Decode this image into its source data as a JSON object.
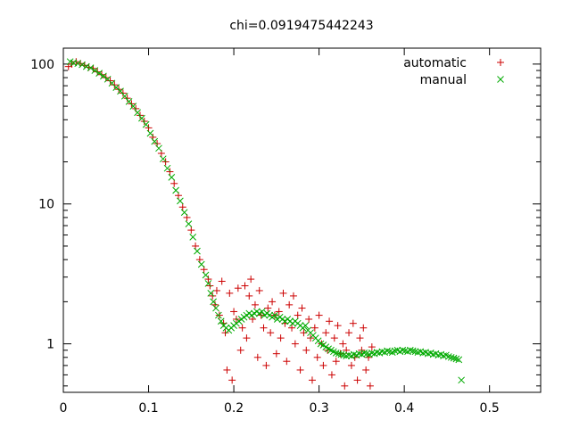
{
  "chart_data": {
    "type": "scatter",
    "title": "chi=0.0919475442243",
    "xlabel": "",
    "ylabel": "",
    "xlim": [
      0,
      0.56
    ],
    "ylim": [
      0.45,
      130
    ],
    "y_scale": "log",
    "grid": false,
    "legend_position": "top-right",
    "x_ticks": [
      "0",
      "0.1",
      "0.2",
      "0.3",
      "0.4",
      "0.5"
    ],
    "y_ticks": [
      "1",
      "10",
      "100"
    ],
    "series": [
      {
        "name": "automatic",
        "marker": "plus",
        "color": "#cc0000",
        "points": [
          [
            0.006,
            96
          ],
          [
            0.01,
            100
          ],
          [
            0.015,
            104
          ],
          [
            0.02,
            101
          ],
          [
            0.025,
            98
          ],
          [
            0.03,
            95
          ],
          [
            0.035,
            93
          ],
          [
            0.04,
            88
          ],
          [
            0.045,
            84
          ],
          [
            0.05,
            80
          ],
          [
            0.055,
            76
          ],
          [
            0.06,
            71
          ],
          [
            0.065,
            66
          ],
          [
            0.07,
            62
          ],
          [
            0.075,
            57
          ],
          [
            0.08,
            52
          ],
          [
            0.085,
            48
          ],
          [
            0.09,
            43
          ],
          [
            0.095,
            39
          ],
          [
            0.1,
            35
          ],
          [
            0.105,
            30
          ],
          [
            0.11,
            27
          ],
          [
            0.115,
            23
          ],
          [
            0.12,
            20
          ],
          [
            0.125,
            17
          ],
          [
            0.13,
            14
          ],
          [
            0.135,
            11.5
          ],
          [
            0.14,
            9.5
          ],
          [
            0.145,
            8
          ],
          [
            0.15,
            6.5
          ],
          [
            0.155,
            5
          ],
          [
            0.16,
            4
          ],
          [
            0.165,
            3.4
          ],
          [
            0.17,
            2.9
          ],
          [
            0.172,
            2.6
          ],
          [
            0.175,
            2.2
          ],
          [
            0.178,
            1.9
          ],
          [
            0.18,
            2.4
          ],
          [
            0.183,
            1.6
          ],
          [
            0.186,
            2.8
          ],
          [
            0.188,
            1.4
          ],
          [
            0.19,
            1.2
          ],
          [
            0.192,
            0.65
          ],
          [
            0.195,
            2.3
          ],
          [
            0.198,
            0.55
          ],
          [
            0.2,
            1.7
          ],
          [
            0.203,
            1.5
          ],
          [
            0.205,
            2.5
          ],
          [
            0.208,
            0.9
          ],
          [
            0.21,
            1.3
          ],
          [
            0.213,
            2.6
          ],
          [
            0.215,
            1.1
          ],
          [
            0.218,
            2.2
          ],
          [
            0.22,
            2.9
          ],
          [
            0.222,
            1.5
          ],
          [
            0.225,
            1.9
          ],
          [
            0.228,
            0.8
          ],
          [
            0.23,
            2.4
          ],
          [
            0.232,
            1.6
          ],
          [
            0.235,
            1.3
          ],
          [
            0.238,
            0.7
          ],
          [
            0.24,
            1.8
          ],
          [
            0.243,
            1.2
          ],
          [
            0.245,
            2.0
          ],
          [
            0.248,
            1.6
          ],
          [
            0.25,
            0.85
          ],
          [
            0.253,
            1.7
          ],
          [
            0.255,
            1.1
          ],
          [
            0.258,
            2.3
          ],
          [
            0.26,
            1.4
          ],
          [
            0.262,
            0.75
          ],
          [
            0.265,
            1.9
          ],
          [
            0.268,
            1.3
          ],
          [
            0.27,
            2.2
          ],
          [
            0.272,
            1.0
          ],
          [
            0.275,
            1.6
          ],
          [
            0.278,
            0.65
          ],
          [
            0.28,
            1.8
          ],
          [
            0.282,
            1.2
          ],
          [
            0.285,
            0.9
          ],
          [
            0.288,
            1.5
          ],
          [
            0.29,
            1.1
          ],
          [
            0.292,
            0.55
          ],
          [
            0.295,
            1.3
          ],
          [
            0.298,
            0.8
          ],
          [
            0.3,
            1.6
          ],
          [
            0.303,
            1.0
          ],
          [
            0.305,
            0.7
          ],
          [
            0.308,
            1.2
          ],
          [
            0.31,
            0.9
          ],
          [
            0.312,
            1.45
          ],
          [
            0.315,
            0.6
          ],
          [
            0.318,
            1.1
          ],
          [
            0.32,
            0.75
          ],
          [
            0.322,
            1.35
          ],
          [
            0.325,
            0.85
          ],
          [
            0.328,
            1.0
          ],
          [
            0.33,
            0.5
          ],
          [
            0.332,
            0.9
          ],
          [
            0.335,
            1.2
          ],
          [
            0.338,
            0.7
          ],
          [
            0.34,
            1.4
          ],
          [
            0.342,
            0.8
          ],
          [
            0.345,
            0.55
          ],
          [
            0.348,
            1.1
          ],
          [
            0.35,
            0.9
          ],
          [
            0.352,
            1.3
          ],
          [
            0.355,
            0.65
          ],
          [
            0.358,
            0.8
          ],
          [
            0.36,
            0.5
          ],
          [
            0.362,
            0.95
          ]
        ]
      },
      {
        "name": "manual",
        "marker": "cross",
        "color": "#00aa00",
        "points": [
          [
            0.008,
            104
          ],
          [
            0.012,
            102
          ],
          [
            0.017,
            101
          ],
          [
            0.022,
            99
          ],
          [
            0.027,
            96
          ],
          [
            0.032,
            94
          ],
          [
            0.037,
            90
          ],
          [
            0.042,
            86
          ],
          [
            0.047,
            82
          ],
          [
            0.052,
            78
          ],
          [
            0.057,
            73
          ],
          [
            0.062,
            68
          ],
          [
            0.067,
            64
          ],
          [
            0.072,
            59
          ],
          [
            0.077,
            54
          ],
          [
            0.082,
            50
          ],
          [
            0.087,
            45
          ],
          [
            0.092,
            41
          ],
          [
            0.097,
            37
          ],
          [
            0.102,
            32
          ],
          [
            0.107,
            28
          ],
          [
            0.112,
            25
          ],
          [
            0.117,
            21
          ],
          [
            0.122,
            18
          ],
          [
            0.127,
            15.5
          ],
          [
            0.132,
            12.5
          ],
          [
            0.137,
            10.5
          ],
          [
            0.142,
            8.7
          ],
          [
            0.147,
            7.2
          ],
          [
            0.152,
            5.8
          ],
          [
            0.157,
            4.6
          ],
          [
            0.162,
            3.7
          ],
          [
            0.167,
            3.1
          ],
          [
            0.17,
            2.7
          ],
          [
            0.173,
            2.3
          ],
          [
            0.176,
            2.0
          ],
          [
            0.179,
            1.8
          ],
          [
            0.182,
            1.6
          ],
          [
            0.185,
            1.45
          ],
          [
            0.188,
            1.35
          ],
          [
            0.191,
            1.3
          ],
          [
            0.194,
            1.25
          ],
          [
            0.197,
            1.3
          ],
          [
            0.2,
            1.35
          ],
          [
            0.203,
            1.4
          ],
          [
            0.206,
            1.45
          ],
          [
            0.209,
            1.5
          ],
          [
            0.212,
            1.55
          ],
          [
            0.215,
            1.6
          ],
          [
            0.218,
            1.65
          ],
          [
            0.221,
            1.6
          ],
          [
            0.224,
            1.65
          ],
          [
            0.227,
            1.7
          ],
          [
            0.23,
            1.65
          ],
          [
            0.233,
            1.7
          ],
          [
            0.236,
            1.6
          ],
          [
            0.239,
            1.65
          ],
          [
            0.242,
            1.6
          ],
          [
            0.245,
            1.55
          ],
          [
            0.248,
            1.6
          ],
          [
            0.251,
            1.5
          ],
          [
            0.254,
            1.55
          ],
          [
            0.257,
            1.5
          ],
          [
            0.26,
            1.45
          ],
          [
            0.263,
            1.5
          ],
          [
            0.266,
            1.45
          ],
          [
            0.269,
            1.4
          ],
          [
            0.272,
            1.45
          ],
          [
            0.275,
            1.4
          ],
          [
            0.278,
            1.35
          ],
          [
            0.281,
            1.3
          ],
          [
            0.284,
            1.35
          ],
          [
            0.287,
            1.25
          ],
          [
            0.29,
            1.2
          ],
          [
            0.293,
            1.15
          ],
          [
            0.296,
            1.1
          ],
          [
            0.299,
            1.05
          ],
          [
            0.302,
            1.0
          ],
          [
            0.305,
            0.98
          ],
          [
            0.308,
            0.95
          ],
          [
            0.311,
            0.92
          ],
          [
            0.314,
            0.9
          ],
          [
            0.317,
            0.88
          ],
          [
            0.32,
            0.86
          ],
          [
            0.323,
            0.85
          ],
          [
            0.326,
            0.84
          ],
          [
            0.329,
            0.83
          ],
          [
            0.332,
            0.82
          ],
          [
            0.335,
            0.83
          ],
          [
            0.338,
            0.82
          ],
          [
            0.341,
            0.84
          ],
          [
            0.344,
            0.83
          ],
          [
            0.347,
            0.85
          ],
          [
            0.35,
            0.84
          ],
          [
            0.353,
            0.86
          ],
          [
            0.356,
            0.85
          ],
          [
            0.359,
            0.84
          ],
          [
            0.362,
            0.86
          ],
          [
            0.365,
            0.85
          ],
          [
            0.368,
            0.87
          ],
          [
            0.371,
            0.86
          ],
          [
            0.374,
            0.88
          ],
          [
            0.377,
            0.87
          ],
          [
            0.38,
            0.89
          ],
          [
            0.383,
            0.88
          ],
          [
            0.386,
            0.87
          ],
          [
            0.389,
            0.89
          ],
          [
            0.392,
            0.9
          ],
          [
            0.395,
            0.88
          ],
          [
            0.398,
            0.9
          ],
          [
            0.401,
            0.89
          ],
          [
            0.404,
            0.88
          ],
          [
            0.407,
            0.9
          ],
          [
            0.41,
            0.89
          ],
          [
            0.413,
            0.88
          ],
          [
            0.416,
            0.87
          ],
          [
            0.419,
            0.88
          ],
          [
            0.422,
            0.86
          ],
          [
            0.425,
            0.87
          ],
          [
            0.428,
            0.85
          ],
          [
            0.431,
            0.86
          ],
          [
            0.434,
            0.84
          ],
          [
            0.437,
            0.85
          ],
          [
            0.44,
            0.83
          ],
          [
            0.443,
            0.84
          ],
          [
            0.446,
            0.82
          ],
          [
            0.449,
            0.83
          ],
          [
            0.452,
            0.81
          ],
          [
            0.455,
            0.8
          ],
          [
            0.458,
            0.79
          ],
          [
            0.461,
            0.78
          ],
          [
            0.464,
            0.77
          ],
          [
            0.467,
            0.55
          ]
        ]
      }
    ]
  }
}
